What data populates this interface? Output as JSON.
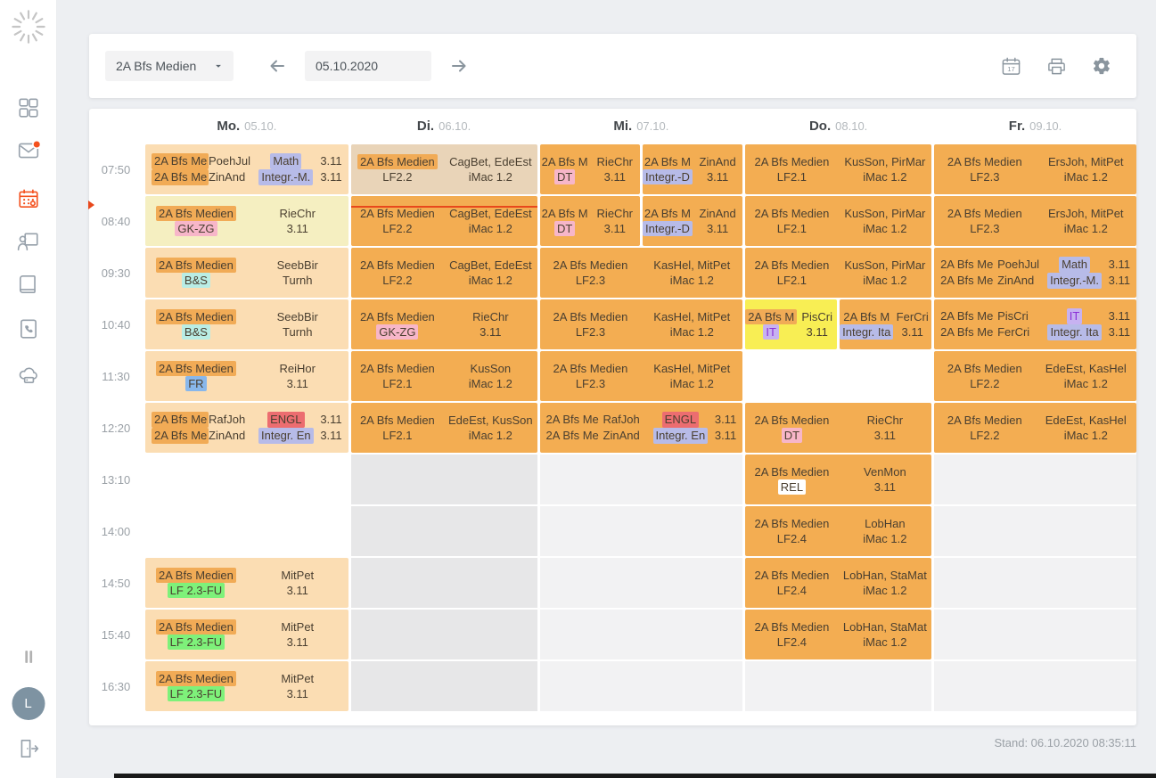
{
  "colors": {
    "accent": "#f4511e",
    "current_time_line": "#e8481c",
    "cell_bg": {
      "orange": "#f3ad52",
      "faded": "#fbddb3",
      "tan": "#e9d4b8",
      "yellow_soft": "#f5efc1",
      "yellow_bright": "#f8ee54"
    },
    "empty_bg": {
      "gray": "#e7e7e8",
      "light": "#f2f2f3"
    },
    "chips": {
      "orange": "#f1ab56",
      "lavender": "#b7bbe8",
      "violet": "#c7b2f1",
      "pink": "#f7b6c9",
      "red": "#ec6d70",
      "blue": "#88b7eb",
      "cyan": "#b9ede5",
      "green": "#7ef17a",
      "white": "#ffffff"
    }
  },
  "sidebar": {
    "items": [
      "dashboard",
      "messages",
      "timetable",
      "class-register",
      "lessons",
      "contacts",
      "platform"
    ],
    "active_item": "timetable",
    "message_badge": true,
    "avatar_letter": "L"
  },
  "toolbar": {
    "class_selector_value": "2A Bfs Medien",
    "date_value": "05.10.2020",
    "calendar_day_number": "17"
  },
  "footer": {
    "stand": "Stand: 06.10.2020 08:35:11"
  },
  "timetable": {
    "class_full": "2A Bfs Medien",
    "times": [
      "07:50",
      "08:40",
      "09:30",
      "10:40",
      "11:30",
      "12:20",
      "13:10",
      "14:00",
      "14:50",
      "15:40",
      "16:30"
    ],
    "days": [
      {
        "label": "Mo.",
        "date": "05.10."
      },
      {
        "label": "Di.",
        "date": "06.10."
      },
      {
        "label": "Mi.",
        "date": "07.10."
      },
      {
        "label": "Do.",
        "date": "08.10."
      },
      {
        "label": "Fr.",
        "date": "09.10."
      }
    ],
    "empty": [
      {
        "day": 1,
        "rows": [
          6,
          7,
          8,
          9,
          10
        ],
        "bg": "gray"
      },
      {
        "day": 2,
        "rows": [
          6,
          7,
          8,
          9,
          10
        ],
        "bg": "light"
      },
      {
        "day": 3,
        "rows": [
          10
        ],
        "bg": "light"
      },
      {
        "day": 4,
        "rows": [
          6,
          7,
          8,
          9,
          10
        ],
        "bg": "light"
      }
    ],
    "now_marker": {
      "row": 1
    },
    "lessons": [
      {
        "day": 0,
        "row": 0,
        "type": "duo",
        "bg": "faded",
        "lines": [
          {
            "cls": "2A Bfs Me",
            "cls_chip": "orange",
            "teacher": "PoehJul",
            "subj": "Math",
            "subj_chip": "lavender",
            "room": "3.11"
          },
          {
            "cls": "2A Bfs Me",
            "cls_chip": "orange",
            "teacher": "ZinAnd",
            "subj": "Integr.-M.",
            "subj_chip": "lavender",
            "room": "3.11"
          }
        ]
      },
      {
        "day": 0,
        "row": 1,
        "type": "std",
        "bg": "yellow_soft",
        "cls_chip": "orange",
        "subj": "GK-ZG",
        "subj_chip": "pink",
        "teacher": "RieChr",
        "room": "3.11"
      },
      {
        "day": 0,
        "row": 2,
        "type": "std",
        "bg": "faded",
        "cls_chip": "orange",
        "subj": "B&S",
        "subj_chip": "cyan",
        "teacher": "SeebBir",
        "room": "Turnh"
      },
      {
        "day": 0,
        "row": 3,
        "type": "std",
        "bg": "faded",
        "cls_chip": "orange",
        "subj": "B&S",
        "subj_chip": "cyan",
        "teacher": "SeebBir",
        "room": "Turnh"
      },
      {
        "day": 0,
        "row": 4,
        "type": "std",
        "bg": "faded",
        "cls_chip": "orange",
        "subj": "FR",
        "subj_chip": "blue",
        "teacher": "ReiHor",
        "room": "3.11"
      },
      {
        "day": 0,
        "row": 5,
        "type": "duo",
        "bg": "faded",
        "lines": [
          {
            "cls": "2A Bfs Me",
            "cls_chip": "orange",
            "teacher": "RafJoh",
            "subj": "ENGL",
            "subj_chip": "red",
            "room": "3.11"
          },
          {
            "cls": "2A Bfs Me",
            "cls_chip": "orange",
            "teacher": "ZinAnd",
            "subj": "Integr. En",
            "subj_chip": "lavender",
            "room": "3.11"
          }
        ]
      },
      {
        "day": 0,
        "row": 8,
        "type": "std",
        "bg": "faded",
        "cls_chip": "orange",
        "subj": "LF 2.3-FU",
        "subj_chip": "green",
        "teacher": "MitPet",
        "room": "3.11"
      },
      {
        "day": 0,
        "row": 9,
        "type": "std",
        "bg": "faded",
        "cls_chip": "orange",
        "subj": "LF 2.3-FU",
        "subj_chip": "green",
        "teacher": "MitPet",
        "room": "3.11"
      },
      {
        "day": 0,
        "row": 10,
        "type": "std",
        "bg": "faded",
        "cls_chip": "orange",
        "subj": "LF 2.3-FU",
        "subj_chip": "green",
        "teacher": "MitPet",
        "room": "3.11"
      },
      {
        "day": 1,
        "row": 0,
        "type": "std",
        "bg": "tan",
        "cls_chip": "orange",
        "subj": "LF2.2",
        "teacher": "CagBet, EdeEst",
        "room": "iMac 1.2"
      },
      {
        "day": 1,
        "row": 1,
        "type": "std",
        "bg": "orange",
        "subj": "LF2.2",
        "teacher": "CagBet, EdeEst",
        "room": "iMac 1.2",
        "now_line": true
      },
      {
        "day": 1,
        "row": 2,
        "type": "std",
        "bg": "orange",
        "subj": "LF2.2",
        "teacher": "CagBet, EdeEst",
        "room": "iMac 1.2"
      },
      {
        "day": 1,
        "row": 3,
        "type": "std",
        "bg": "orange",
        "subj": "GK-ZG",
        "subj_chip": "pink",
        "teacher": "RieChr",
        "room": "3.11"
      },
      {
        "day": 1,
        "row": 4,
        "type": "std",
        "bg": "orange",
        "subj": "LF2.1",
        "teacher": "KusSon",
        "room": "iMac 1.2"
      },
      {
        "day": 1,
        "row": 5,
        "type": "std",
        "bg": "orange",
        "subj": "LF2.1",
        "teacher": "EdeEst, KusSon",
        "room": "iMac 1.2"
      },
      {
        "day": 2,
        "row": 0,
        "type": "halves",
        "halves": [
          {
            "bg": "orange",
            "cls": "2A Bfs M",
            "subj": "DT",
            "subj_chip": "pink",
            "teacher": "RieChr",
            "room": "3.11"
          },
          {
            "bg": "orange",
            "cls": "2A Bfs M",
            "subj": "Integr.-D",
            "subj_chip": "lavender",
            "teacher": "ZinAnd",
            "room": "3.11"
          }
        ]
      },
      {
        "day": 2,
        "row": 1,
        "type": "halves",
        "halves": [
          {
            "bg": "orange",
            "cls": "2A Bfs M",
            "subj": "DT",
            "subj_chip": "pink",
            "teacher": "RieChr",
            "room": "3.11"
          },
          {
            "bg": "orange",
            "cls": "2A Bfs M",
            "subj": "Integr.-D",
            "subj_chip": "lavender",
            "teacher": "ZinAnd",
            "room": "3.11"
          }
        ]
      },
      {
        "day": 2,
        "row": 2,
        "type": "std",
        "bg": "orange",
        "subj": "LF2.3",
        "teacher": "KasHel, MitPet",
        "room": "iMac 1.2"
      },
      {
        "day": 2,
        "row": 3,
        "type": "std",
        "bg": "orange",
        "subj": "LF2.3",
        "teacher": "KasHel, MitPet",
        "room": "iMac 1.2"
      },
      {
        "day": 2,
        "row": 4,
        "type": "std",
        "bg": "orange",
        "subj": "LF2.3",
        "teacher": "KasHel, MitPet",
        "room": "iMac 1.2"
      },
      {
        "day": 2,
        "row": 5,
        "type": "duo",
        "bg": "orange",
        "lines": [
          {
            "cls": "2A Bfs Me",
            "teacher": "RafJoh",
            "subj": "ENGL",
            "subj_chip": "red",
            "room": "3.11"
          },
          {
            "cls": "2A Bfs Me",
            "teacher": "ZinAnd",
            "subj": "Integr. En",
            "subj_chip": "lavender",
            "room": "3.11"
          }
        ]
      },
      {
        "day": 3,
        "row": 0,
        "type": "std",
        "bg": "orange",
        "subj": "LF2.1",
        "teacher": "KusSon, PirMar",
        "room": "iMac 1.2"
      },
      {
        "day": 3,
        "row": 1,
        "type": "std",
        "bg": "orange",
        "subj": "LF2.1",
        "teacher": "KusSon, PirMar",
        "room": "iMac 1.2"
      },
      {
        "day": 3,
        "row": 2,
        "type": "std",
        "bg": "orange",
        "subj": "LF2.1",
        "teacher": "KusSon, PirMar",
        "room": "iMac 1.2"
      },
      {
        "day": 3,
        "row": 3,
        "type": "halves",
        "halves": [
          {
            "bg": "yellow_bright",
            "cls": "2A Bfs M",
            "cls_chip": "orange",
            "subj": "IT",
            "subj_chip": "violet",
            "subj_color": "#8b2fd6",
            "teacher": "PisCri",
            "room": "3.11"
          },
          {
            "bg": "orange",
            "cls": "2A Bfs M",
            "subj": "Integr. Ita",
            "subj_chip": "lavender",
            "teacher": "FerCri",
            "room": "3.11"
          }
        ]
      },
      {
        "day": 3,
        "row": 5,
        "type": "std",
        "bg": "orange",
        "subj": "DT",
        "subj_chip": "pink",
        "teacher": "RieChr",
        "room": "3.11"
      },
      {
        "day": 3,
        "row": 6,
        "type": "std",
        "bg": "orange",
        "subj": "REL",
        "subj_chip": "white",
        "teacher": "VenMon",
        "room": "3.11"
      },
      {
        "day": 3,
        "row": 7,
        "type": "std",
        "bg": "orange",
        "subj": "LF2.4",
        "teacher": "LobHan",
        "room": "iMac 1.2"
      },
      {
        "day": 3,
        "row": 8,
        "type": "std",
        "bg": "orange",
        "subj": "LF2.4",
        "teacher": "LobHan, StaMat",
        "room": "iMac 1.2"
      },
      {
        "day": 3,
        "row": 9,
        "type": "std",
        "bg": "orange",
        "subj": "LF2.4",
        "teacher": "LobHan, StaMat",
        "room": "iMac 1.2"
      },
      {
        "day": 4,
        "row": 0,
        "type": "std",
        "bg": "orange",
        "subj": "LF2.3",
        "teacher": "ErsJoh, MitPet",
        "room": "iMac 1.2"
      },
      {
        "day": 4,
        "row": 1,
        "type": "std",
        "bg": "orange",
        "subj": "LF2.3",
        "teacher": "ErsJoh, MitPet",
        "room": "iMac 1.2"
      },
      {
        "day": 4,
        "row": 2,
        "type": "duo",
        "bg": "orange",
        "lines": [
          {
            "cls": "2A Bfs Me",
            "teacher": "PoehJul",
            "subj": "Math",
            "subj_chip": "lavender",
            "room": "3.11"
          },
          {
            "cls": "2A Bfs Me",
            "teacher": "ZinAnd",
            "subj": "Integr.-M.",
            "subj_chip": "lavender",
            "room": "3.11"
          }
        ]
      },
      {
        "day": 4,
        "row": 3,
        "type": "duo",
        "bg": "orange",
        "lines": [
          {
            "cls": "2A Bfs Me",
            "teacher": "PisCri",
            "subj": "IT",
            "subj_chip": "violet",
            "subj_color": "#8b2fd6",
            "room": "3.11"
          },
          {
            "cls": "2A Bfs Me",
            "teacher": "FerCri",
            "subj": "Integr. Ita",
            "subj_chip": "lavender",
            "room": "3.11"
          }
        ]
      },
      {
        "day": 4,
        "row": 4,
        "type": "std",
        "bg": "orange",
        "subj": "LF2.2",
        "teacher": "EdeEst, KasHel",
        "room": "iMac 1.2"
      },
      {
        "day": 4,
        "row": 5,
        "type": "std",
        "bg": "orange",
        "subj": "LF2.2",
        "teacher": "EdeEst, KasHel",
        "room": "iMac 1.2"
      }
    ]
  }
}
